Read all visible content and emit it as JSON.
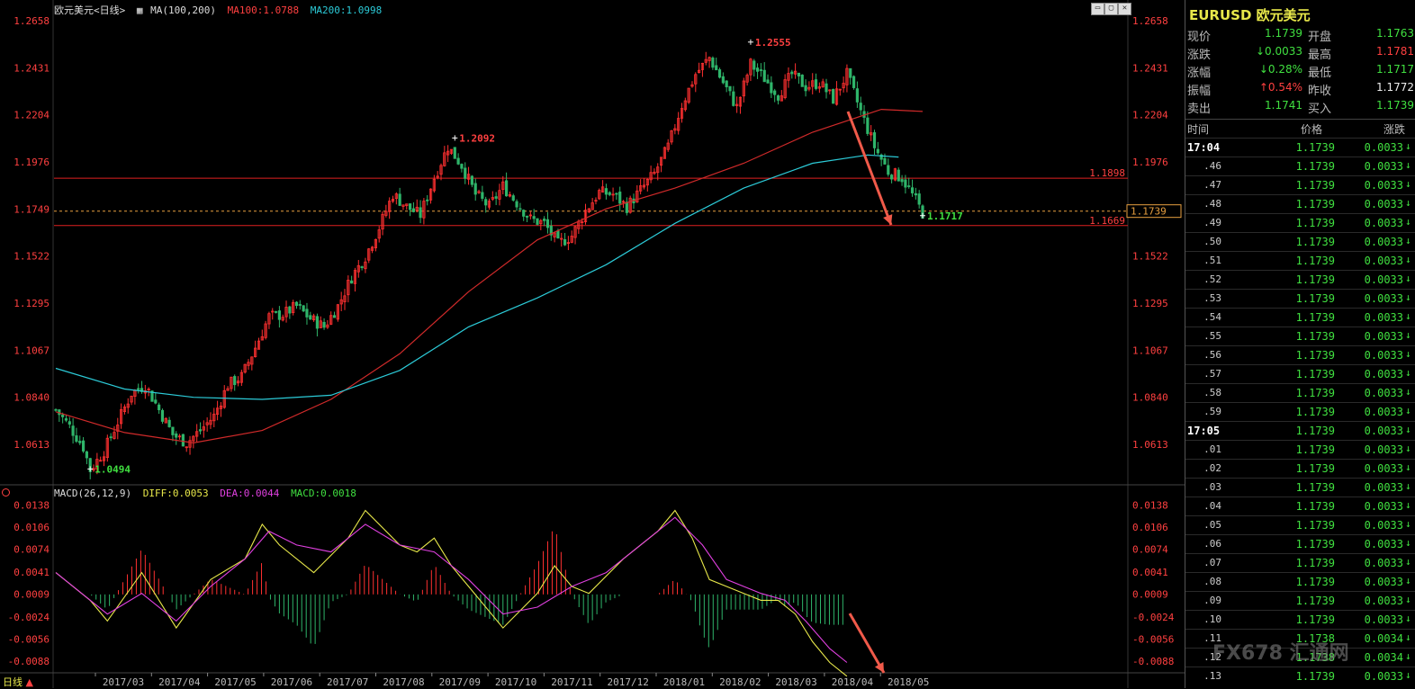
{
  "header": {
    "symbol": "欧元美元<日线>",
    "ma_label": "MA(100,200)",
    "ma100": "MA100:1.0788",
    "ma200": "MA200:1.0998"
  },
  "macd_header": {
    "name": "MACD(26,12,9)",
    "diff": "DIFF:0.0053",
    "dea": "DEA:0.0044",
    "macd": "MACD:0.0018"
  },
  "price_axis": [
    "1.2658",
    "1.2431",
    "1.2204",
    "1.1976",
    "1.1749",
    "1.1522",
    "1.1295",
    "1.1067",
    "1.0840",
    "1.0613"
  ],
  "macd_axis": [
    "0.0138",
    "0.0106",
    "0.0074",
    "0.0041",
    "0.0009",
    "-0.0024",
    "-0.0056",
    "-0.0088"
  ],
  "date_axis": [
    "2017/03",
    "2017/04",
    "2017/05",
    "2017/06",
    "2017/07",
    "2017/08",
    "2017/09",
    "2017/10",
    "2017/11",
    "2017/12",
    "2018/01",
    "2018/02",
    "2018/03",
    "2018/04",
    "2018/05"
  ],
  "annotations": {
    "high": "1.2555",
    "mid_high": "1.2092",
    "low": "1.0494",
    "last_low": "1.1717",
    "line1": "1.1898",
    "line2": "1.1669",
    "current": "1.1739"
  },
  "period_tab": "日线",
  "colors": {
    "up": "#ff3030",
    "down": "#2fb56a",
    "ma100": "#d02a2a",
    "ma200": "#2ccbd8",
    "arrow": "#f05a4a"
  },
  "chart_data": {
    "type": "candlestick",
    "ylim": [
      1.05,
      1.268
    ],
    "macd_ylim": [
      -0.0105,
      0.0145
    ],
    "close_path": [
      [
        0,
        1.078
      ],
      [
        4,
        1.07
      ],
      [
        8,
        1.06
      ],
      [
        10,
        1.049
      ],
      [
        14,
        1.058
      ],
      [
        18,
        1.072
      ],
      [
        22,
        1.086
      ],
      [
        26,
        1.09
      ],
      [
        30,
        1.078
      ],
      [
        34,
        1.066
      ],
      [
        38,
        1.062
      ],
      [
        42,
        1.068
      ],
      [
        46,
        1.075
      ],
      [
        50,
        1.09
      ],
      [
        54,
        1.094
      ],
      [
        58,
        1.108
      ],
      [
        62,
        1.123
      ],
      [
        66,
        1.124
      ],
      [
        70,
        1.128
      ],
      [
        74,
        1.122
      ],
      [
        78,
        1.118
      ],
      [
        82,
        1.128
      ],
      [
        86,
        1.142
      ],
      [
        90,
        1.152
      ],
      [
        94,
        1.166
      ],
      [
        98,
        1.182
      ],
      [
        102,
        1.176
      ],
      [
        106,
        1.172
      ],
      [
        110,
        1.19
      ],
      [
        114,
        1.205
      ],
      [
        118,
        1.196
      ],
      [
        122,
        1.182
      ],
      [
        126,
        1.176
      ],
      [
        130,
        1.186
      ],
      [
        134,
        1.178
      ],
      [
        138,
        1.17
      ],
      [
        142,
        1.168
      ],
      [
        146,
        1.158
      ],
      [
        150,
        1.162
      ],
      [
        154,
        1.174
      ],
      [
        158,
        1.183
      ],
      [
        162,
        1.182
      ],
      [
        166,
        1.176
      ],
      [
        170,
        1.184
      ],
      [
        174,
        1.192
      ],
      [
        178,
        1.205
      ],
      [
        182,
        1.225
      ],
      [
        186,
        1.24
      ],
      [
        190,
        1.248
      ],
      [
        194,
        1.236
      ],
      [
        198,
        1.224
      ],
      [
        202,
        1.245
      ],
      [
        206,
        1.238
      ],
      [
        210,
        1.23
      ],
      [
        214,
        1.24
      ],
      [
        218,
        1.234
      ],
      [
        222,
        1.236
      ],
      [
        226,
        1.228
      ],
      [
        230,
        1.24
      ],
      [
        234,
        1.222
      ],
      [
        238,
        1.205
      ],
      [
        242,
        1.193
      ],
      [
        246,
        1.19
      ],
      [
        250,
        1.179
      ],
      [
        252,
        1.173
      ]
    ],
    "ma100_path": [
      [
        0,
        1.077
      ],
      [
        20,
        1.067
      ],
      [
        40,
        1.062
      ],
      [
        60,
        1.068
      ],
      [
        80,
        1.083
      ],
      [
        100,
        1.105
      ],
      [
        120,
        1.135
      ],
      [
        140,
        1.16
      ],
      [
        160,
        1.175
      ],
      [
        180,
        1.185
      ],
      [
        200,
        1.197
      ],
      [
        220,
        1.212
      ],
      [
        240,
        1.223
      ],
      [
        252,
        1.222
      ]
    ],
    "ma200_path": [
      [
        0,
        1.098
      ],
      [
        20,
        1.088
      ],
      [
        40,
        1.084
      ],
      [
        60,
        1.083
      ],
      [
        80,
        1.085
      ],
      [
        100,
        1.097
      ],
      [
        120,
        1.118
      ],
      [
        140,
        1.132
      ],
      [
        160,
        1.148
      ],
      [
        180,
        1.168
      ],
      [
        200,
        1.185
      ],
      [
        220,
        1.197
      ],
      [
        236,
        1.201
      ],
      [
        245,
        1.2
      ]
    ],
    "diff_path": [
      [
        0,
        0.004
      ],
      [
        10,
        0.0
      ],
      [
        15,
        -0.003
      ],
      [
        25,
        0.004
      ],
      [
        35,
        -0.004
      ],
      [
        45,
        0.003
      ],
      [
        55,
        0.006
      ],
      [
        60,
        0.011
      ],
      [
        65,
        0.008
      ],
      [
        75,
        0.004
      ],
      [
        85,
        0.009
      ],
      [
        90,
        0.013
      ],
      [
        100,
        0.008
      ],
      [
        105,
        0.007
      ],
      [
        110,
        0.009
      ],
      [
        115,
        0.005
      ],
      [
        120,
        0.002
      ],
      [
        130,
        -0.004
      ],
      [
        140,
        0.001
      ],
      [
        145,
        0.005
      ],
      [
        150,
        0.002
      ],
      [
        155,
        0.001
      ],
      [
        165,
        0.006
      ],
      [
        175,
        0.01
      ],
      [
        180,
        0.013
      ],
      [
        185,
        0.009
      ],
      [
        190,
        0.003
      ],
      [
        195,
        0.002
      ],
      [
        200,
        0.001
      ],
      [
        205,
        0.0
      ],
      [
        210,
        0.0
      ],
      [
        215,
        -0.002
      ],
      [
        220,
        -0.006
      ],
      [
        225,
        -0.009
      ],
      [
        230,
        -0.011
      ]
    ],
    "dea_path": [
      [
        0,
        0.004
      ],
      [
        15,
        -0.002
      ],
      [
        25,
        0.001
      ],
      [
        35,
        -0.003
      ],
      [
        45,
        0.002
      ],
      [
        55,
        0.006
      ],
      [
        62,
        0.01
      ],
      [
        70,
        0.008
      ],
      [
        80,
        0.007
      ],
      [
        90,
        0.011
      ],
      [
        100,
        0.008
      ],
      [
        110,
        0.007
      ],
      [
        120,
        0.003
      ],
      [
        130,
        -0.002
      ],
      [
        140,
        -0.001
      ],
      [
        150,
        0.002
      ],
      [
        160,
        0.004
      ],
      [
        170,
        0.008
      ],
      [
        180,
        0.012
      ],
      [
        188,
        0.008
      ],
      [
        195,
        0.003
      ],
      [
        205,
        0.001
      ],
      [
        212,
        0.0
      ],
      [
        218,
        -0.003
      ],
      [
        225,
        -0.007
      ],
      [
        230,
        -0.009
      ]
    ]
  },
  "panel": {
    "title": "EURUSD 欧元美元",
    "rows": [
      {
        "l1": "现价",
        "v1": "1.1739",
        "c1": "down",
        "l2": "开盘",
        "v2": "1.1763",
        "c2": "down"
      },
      {
        "l1": "涨跌",
        "v1": "↓0.0033",
        "c1": "down",
        "l2": "最高",
        "v2": "1.1781",
        "c2": "up"
      },
      {
        "l1": "涨幅",
        "v1": "↓0.28%",
        "c1": "down",
        "l2": "最低",
        "v2": "1.1717",
        "c2": "down"
      },
      {
        "l1": "振幅",
        "v1": "↑0.54%",
        "c1": "up",
        "l2": "昨收",
        "v2": "1.1772",
        "c2": "white"
      },
      {
        "l1": "卖出",
        "v1": "1.1741",
        "c1": "down",
        "l2": "买入",
        "v2": "1.1739",
        "c2": "down"
      }
    ],
    "tick_header": {
      "time": "时间",
      "price": "价格",
      "change": "涨跌"
    },
    "ticks": [
      {
        "t": "17:04",
        "p": "1.1739",
        "c": "0.0033",
        "full": true
      },
      {
        "t": ".46",
        "p": "1.1739",
        "c": "0.0033"
      },
      {
        "t": ".47",
        "p": "1.1739",
        "c": "0.0033"
      },
      {
        "t": ".48",
        "p": "1.1739",
        "c": "0.0033"
      },
      {
        "t": ".49",
        "p": "1.1739",
        "c": "0.0033"
      },
      {
        "t": ".50",
        "p": "1.1739",
        "c": "0.0033"
      },
      {
        "t": ".51",
        "p": "1.1739",
        "c": "0.0033"
      },
      {
        "t": ".52",
        "p": "1.1739",
        "c": "0.0033"
      },
      {
        "t": ".53",
        "p": "1.1739",
        "c": "0.0033"
      },
      {
        "t": ".54",
        "p": "1.1739",
        "c": "0.0033"
      },
      {
        "t": ".55",
        "p": "1.1739",
        "c": "0.0033"
      },
      {
        "t": ".56",
        "p": "1.1739",
        "c": "0.0033"
      },
      {
        "t": ".57",
        "p": "1.1739",
        "c": "0.0033"
      },
      {
        "t": ".58",
        "p": "1.1739",
        "c": "0.0033"
      },
      {
        "t": ".59",
        "p": "1.1739",
        "c": "0.0033"
      },
      {
        "t": "17:05",
        "p": "1.1739",
        "c": "0.0033",
        "full": true
      },
      {
        "t": ".01",
        "p": "1.1739",
        "c": "0.0033"
      },
      {
        "t": ".02",
        "p": "1.1739",
        "c": "0.0033"
      },
      {
        "t": ".03",
        "p": "1.1739",
        "c": "0.0033"
      },
      {
        "t": ".04",
        "p": "1.1739",
        "c": "0.0033"
      },
      {
        "t": ".05",
        "p": "1.1739",
        "c": "0.0033"
      },
      {
        "t": ".06",
        "p": "1.1739",
        "c": "0.0033"
      },
      {
        "t": ".07",
        "p": "1.1739",
        "c": "0.0033"
      },
      {
        "t": ".08",
        "p": "1.1739",
        "c": "0.0033"
      },
      {
        "t": ".09",
        "p": "1.1739",
        "c": "0.0033"
      },
      {
        "t": ".10",
        "p": "1.1739",
        "c": "0.0033"
      },
      {
        "t": ".11",
        "p": "1.1738",
        "c": "0.0034"
      },
      {
        "t": ".12",
        "p": "1.1738",
        "c": "0.0034"
      },
      {
        "t": ".13",
        "p": "1.1739",
        "c": "0.0033"
      }
    ]
  },
  "watermark": "FX678 汇通网"
}
